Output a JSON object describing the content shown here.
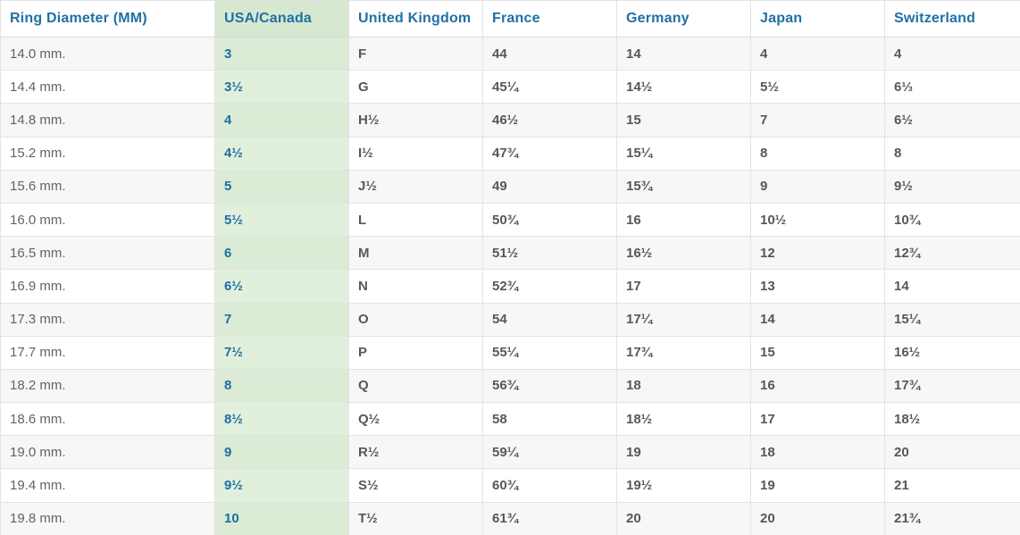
{
  "table": {
    "headers": [
      "Ring Diameter (MM)",
      "USA/Canada",
      "United Kingdom",
      "France",
      "Germany",
      "Japan",
      "Switzerland"
    ],
    "highlight_column_index": 1,
    "rows": [
      [
        "14.0 mm.",
        "3",
        "F",
        "44",
        "14",
        "4",
        "4"
      ],
      [
        "14.4 mm.",
        "3½",
        "G",
        "45¼",
        "14½",
        "5½",
        "6⅓"
      ],
      [
        "14.8 mm.",
        "4",
        "H½",
        "46½",
        "15",
        "7",
        "6½"
      ],
      [
        "15.2 mm.",
        "4½",
        "I½",
        "47¾",
        "15¼",
        "8",
        "8"
      ],
      [
        "15.6 mm.",
        "5",
        "J½",
        "49",
        "15¾",
        "9",
        "9½"
      ],
      [
        "16.0 mm.",
        "5½",
        "L",
        "50¾",
        "16",
        "10½",
        "10¾"
      ],
      [
        "16.5 mm.",
        "6",
        "M",
        "51½",
        "16½",
        "12",
        "12¾"
      ],
      [
        "16.9 mm.",
        "6½",
        "N",
        "52¾",
        "17",
        "13",
        "14"
      ],
      [
        "17.3 mm.",
        "7",
        "O",
        "54",
        "17¼",
        "14",
        "15¼"
      ],
      [
        "17.7 mm.",
        "7½",
        "P",
        "55¼",
        "17¾",
        "15",
        "16½"
      ],
      [
        "18.2 mm.",
        "8",
        "Q",
        "56¾",
        "18",
        "16",
        "17¾"
      ],
      [
        "18.6 mm.",
        "8½",
        "Q½",
        "58",
        "18½",
        "17",
        "18½"
      ],
      [
        "19.0 mm.",
        "9",
        "R½",
        "59¼",
        "19",
        "18",
        "20"
      ],
      [
        "19.4 mm.",
        "9½",
        "S½",
        "60¾",
        "19½",
        "19",
        "21"
      ],
      [
        "19.8 mm.",
        "10",
        "T½",
        "61¾",
        "20",
        "20",
        "21¾"
      ]
    ]
  },
  "colors": {
    "header_text": "#2270a5",
    "highlight_value_text": "#1f6da4",
    "highlight_header_bg": "#d6e8d0",
    "highlight_cell_bg_striped_row": "#dbebd6",
    "highlight_cell_bg_white_row": "#e1f0dd",
    "row_stripe_bg": "#f7f7f7",
    "body_text": "#54585b",
    "diameter_text": "#5f6368",
    "border": "#e3e3e3"
  }
}
